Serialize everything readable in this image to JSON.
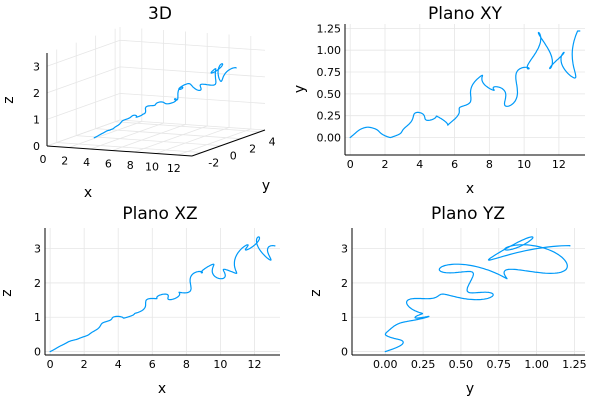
{
  "series_color": "#009af9",
  "chart_data": [
    {
      "type": "line3d",
      "title": "3D",
      "xlabel": "x",
      "ylabel": "y",
      "zlabel": "z",
      "xticks": [
        "0",
        "2",
        "4",
        "6",
        "8",
        "10",
        "12"
      ],
      "yticks": [
        "-2",
        "0",
        "2",
        "4"
      ],
      "zticks": [
        "0",
        "1",
        "2",
        "3"
      ],
      "xlim": [
        0,
        13.3
      ],
      "ylim": [
        -3,
        4.5
      ],
      "zlim": [
        0,
        3.5
      ],
      "grid": true
    },
    {
      "type": "line",
      "title": "Plano XY",
      "xlabel": "x",
      "ylabel": "y",
      "xticks": [
        "0",
        "2",
        "4",
        "6",
        "8",
        "10",
        "12"
      ],
      "yticks": [
        "0.00",
        "0.25",
        "0.50",
        "0.75",
        "1.00",
        "1.25"
      ],
      "xlim": [
        -0.3,
        13.5
      ],
      "ylim": [
        -0.2,
        1.3
      ],
      "grid": true
    },
    {
      "type": "line",
      "title": "Plano XZ",
      "xlabel": "x",
      "ylabel": "z",
      "xticks": [
        "0",
        "2",
        "4",
        "6",
        "8",
        "10",
        "12"
      ],
      "yticks": [
        "0",
        "1",
        "2",
        "3"
      ],
      "xlim": [
        -0.3,
        13.5
      ],
      "ylim": [
        -0.1,
        3.6
      ],
      "grid": true
    },
    {
      "type": "line",
      "title": "Plano YZ",
      "xlabel": "y",
      "ylabel": "z",
      "xticks": [
        "0.00",
        "0.25",
        "0.50",
        "0.75",
        "1.00",
        "1.25"
      ],
      "yticks": [
        "0",
        "1",
        "2",
        "3"
      ],
      "xlim": [
        -0.22,
        1.32
      ],
      "ylim": [
        -0.1,
        3.6
      ],
      "grid": true
    }
  ]
}
